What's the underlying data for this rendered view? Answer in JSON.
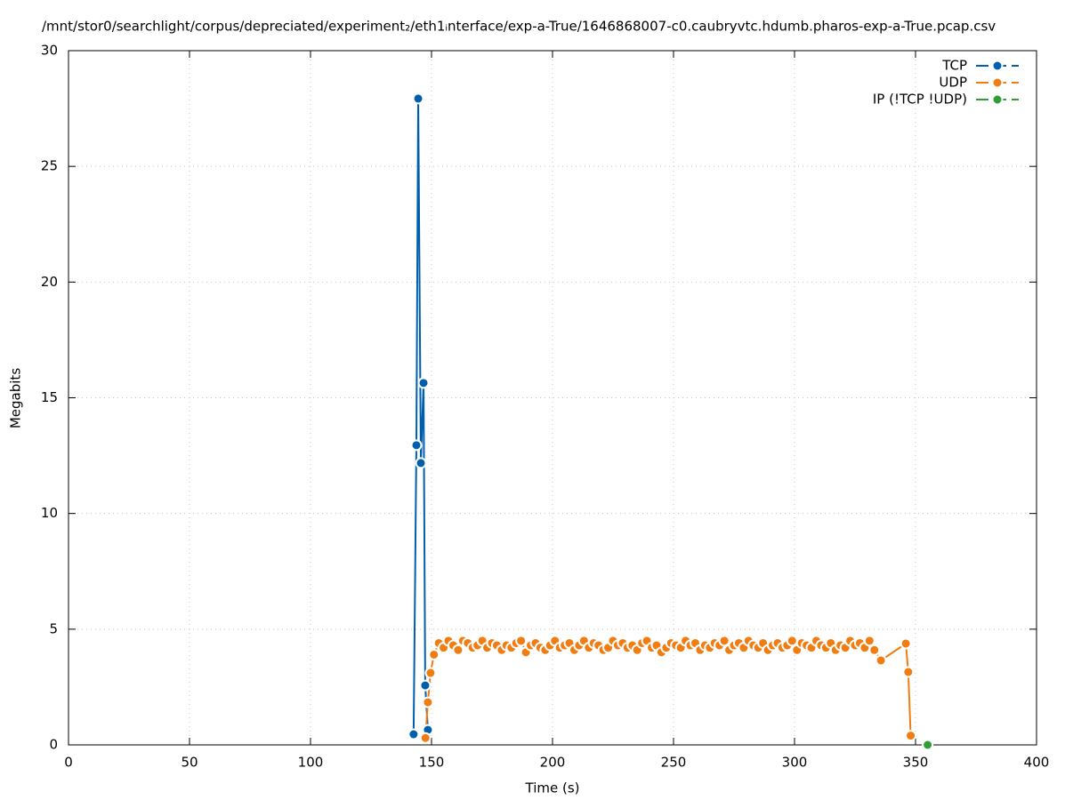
{
  "chart_data": {
    "type": "line",
    "title": "/mnt/stor0/searchlight/corpus/depreciated/experiment₂/eth1ᵢnterface/exp-a-True/1646868007-c0.caubryvtc.hdumb.pharos-exp-a-True.pcap.csv",
    "x_label": "Time (s)",
    "y_label": "Megabits",
    "xlim": [
      0,
      400
    ],
    "xticks": [
      0,
      50,
      100,
      150,
      200,
      250,
      300,
      350,
      400
    ],
    "ylim": [
      0,
      30
    ],
    "yticks": [
      0,
      5,
      10,
      15,
      20,
      25,
      30
    ],
    "grid": true,
    "legend": "upper right",
    "series": [
      {
        "name": "TCP",
        "color": "#005fad",
        "x": [
          142.6,
          143.75,
          144.5,
          145.6,
          146.7,
          147.4,
          148.5
        ],
        "values": [
          0.46,
          12.95,
          27.93,
          12.18,
          15.64,
          2.57,
          0.65
        ]
      },
      {
        "name": "UDP",
        "color": "#f07c12",
        "x": [
          147.5,
          148.5,
          149.6,
          151,
          153,
          155,
          157,
          159,
          161,
          163,
          165,
          167,
          169,
          171,
          173,
          175,
          177,
          179,
          181,
          183,
          185,
          187,
          189,
          191,
          193,
          195,
          197,
          199,
          201,
          203,
          205,
          207,
          209,
          211,
          213,
          215,
          217,
          219,
          221,
          223,
          225,
          227,
          229,
          231,
          233,
          235,
          237,
          239,
          241,
          243,
          245,
          247,
          249,
          251,
          253,
          255,
          257,
          259,
          261,
          263,
          265,
          267,
          269,
          271,
          273,
          275,
          277,
          279,
          281,
          283,
          285,
          287,
          289,
          291,
          293,
          295,
          297,
          299,
          301,
          303,
          305,
          307,
          309,
          311,
          313,
          315,
          317,
          319,
          321,
          323,
          325,
          327,
          329,
          331,
          333,
          335.7,
          346,
          347,
          348
        ],
        "values": [
          0.3,
          1.84,
          3.11,
          3.9,
          4.4,
          4.2,
          4.5,
          4.3,
          4.1,
          4.5,
          4.4,
          4.2,
          4.3,
          4.5,
          4.2,
          4.4,
          4.3,
          4.1,
          4.3,
          4.2,
          4.4,
          4.5,
          4.0,
          4.3,
          4.4,
          4.2,
          4.1,
          4.3,
          4.5,
          4.2,
          4.3,
          4.4,
          4.1,
          4.3,
          4.5,
          4.2,
          4.4,
          4.3,
          4.1,
          4.2,
          4.5,
          4.3,
          4.4,
          4.2,
          4.3,
          4.1,
          4.4,
          4.5,
          4.2,
          4.3,
          4.0,
          4.2,
          4.4,
          4.3,
          4.2,
          4.5,
          4.3,
          4.4,
          4.1,
          4.3,
          4.2,
          4.4,
          4.3,
          4.5,
          4.1,
          4.3,
          4.4,
          4.2,
          4.5,
          4.3,
          4.2,
          4.4,
          4.1,
          4.3,
          4.4,
          4.2,
          4.3,
          4.5,
          4.1,
          4.4,
          4.3,
          4.2,
          4.5,
          4.3,
          4.2,
          4.4,
          4.1,
          4.3,
          4.2,
          4.5,
          4.3,
          4.4,
          4.2,
          4.5,
          4.1,
          3.65,
          4.38,
          3.15,
          0.4
        ]
      },
      {
        "name": "IP (!TCP  !UDP)",
        "color": "#2f9e34",
        "x": [
          355
        ],
        "values": [
          0
        ]
      }
    ]
  }
}
